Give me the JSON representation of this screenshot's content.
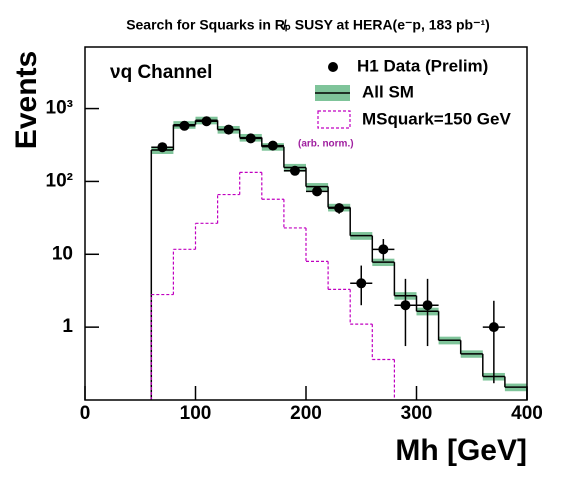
{
  "chart_data": {
    "type": "histogram",
    "title": "Search for Squarks in R̸ₚ SUSY at HERA(e⁻p, 183 pb⁻¹)",
    "annotations": [
      "νq Channel",
      "(arb. norm.)"
    ],
    "x_label": "Mh [GeV]",
    "y_label": "Events",
    "log_y": true,
    "xlim": [
      0,
      400
    ],
    "xticks": [
      0,
      100,
      200,
      300,
      400
    ],
    "ylim": [
      0.1,
      7000
    ],
    "yticks": [
      1,
      10,
      {
        "value": 100,
        "label": "10²"
      },
      {
        "value": 1000,
        "label": "10³"
      }
    ],
    "legend": "top-right",
    "data_points": {
      "name": "H1 Data (Prelim)",
      "color": "#000000",
      "x": [
        70,
        90,
        110,
        130,
        150,
        170,
        190,
        210,
        230,
        250,
        270,
        290,
        310,
        370
      ],
      "values": [
        295,
        580,
        670,
        515,
        390,
        310,
        140,
        73,
        43,
        4,
        11.7,
        2,
        2,
        1
      ],
      "err_low": [
        17,
        24,
        26,
        23,
        20,
        18,
        12,
        9,
        7,
        2,
        3.5,
        1.45,
        1.45,
        0.83
      ],
      "err_high": [
        17,
        24,
        26,
        23,
        20,
        18,
        12,
        9,
        7,
        3,
        4.5,
        2.6,
        2.6,
        1.3
      ]
    },
    "sm": {
      "name": "All SM",
      "color": "#000000",
      "band_color": "#7fc49a",
      "bins": [
        60,
        80,
        100,
        120,
        140,
        160,
        180,
        200,
        220,
        240,
        260,
        280,
        300,
        320,
        340,
        360,
        380,
        400
      ],
      "values": [
        270,
        600,
        690,
        515,
        400,
        300,
        155,
        85,
        44,
        18,
        7.8,
        2.7,
        1.65,
        0.66,
        0.43,
        0.21,
        0.15
      ],
      "errors": [
        32,
        72,
        83,
        62,
        48,
        36,
        19,
        10,
        5.3,
        2.2,
        0.9,
        0.32,
        0.2,
        0.08,
        0.05,
        0.025,
        0.018
      ]
    },
    "signal": {
      "name": "MSquark=150 GeV",
      "color": "#c000c0",
      "bins": [
        60,
        80,
        100,
        120,
        140,
        160,
        180,
        200,
        220,
        240,
        260,
        280
      ],
      "values": [
        2.8,
        11.7,
        26.6,
        66,
        133,
        57,
        23,
        8,
        3.3,
        1.1,
        0.36
      ]
    }
  }
}
